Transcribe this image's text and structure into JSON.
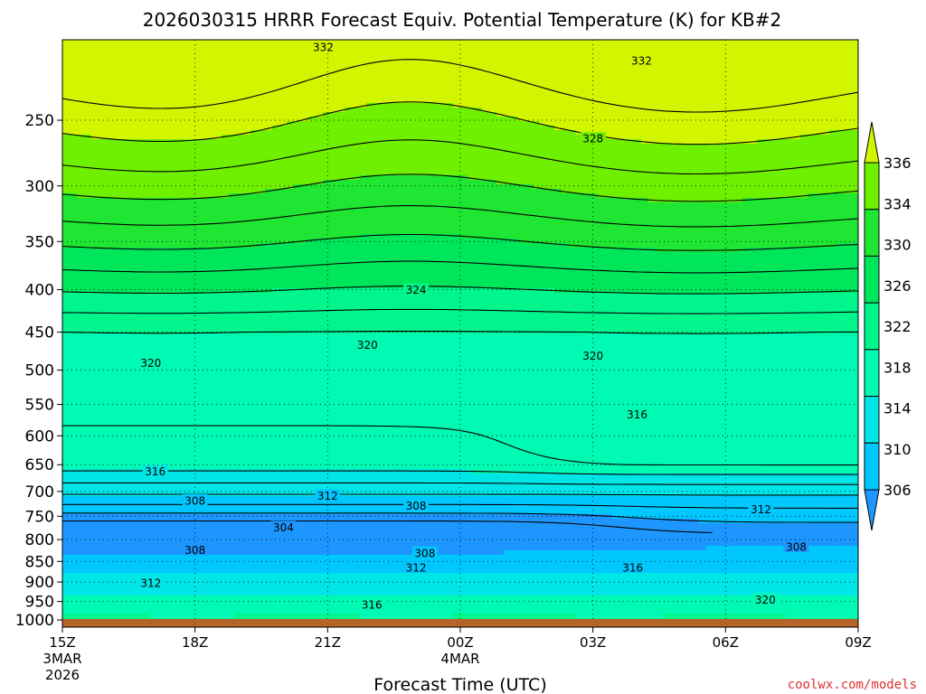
{
  "chart_data": {
    "type": "contour",
    "title": "2026030315 HRRR Forecast Equiv. Potential Temperature (K) for KB#2",
    "xlabel": "Forecast Time (UTC)",
    "ylabel": "",
    "x_ticks": [
      {
        "hour": 0,
        "label": "15Z",
        "sub1": "3MAR",
        "sub2": "2026"
      },
      {
        "hour": 3,
        "label": "18Z"
      },
      {
        "hour": 6,
        "label": "21Z"
      },
      {
        "hour": 9,
        "label": "00Z",
        "sub1": "4MAR"
      },
      {
        "hour": 12,
        "label": "03Z"
      },
      {
        "hour": 15,
        "label": "06Z"
      },
      {
        "hour": 18,
        "label": "09Z"
      }
    ],
    "y_ticks": [
      250,
      300,
      350,
      400,
      450,
      500,
      550,
      600,
      650,
      700,
      750,
      800,
      850,
      900,
      950,
      1000
    ],
    "y_range_hpa": [
      200,
      1020
    ],
    "y_scale": "log",
    "x_range_hours": [
      0,
      18
    ],
    "colorbar": {
      "levels": [
        306,
        310,
        314,
        318,
        322,
        326,
        330,
        334,
        336
      ],
      "bands": [
        {
          "lo": 302,
          "hi": 306,
          "color": "#1e96ff"
        },
        {
          "lo": 306,
          "hi": 310,
          "color": "#00c8ff"
        },
        {
          "lo": 310,
          "hi": 314,
          "color": "#00e6e6"
        },
        {
          "lo": 314,
          "hi": 318,
          "color": "#00fab4"
        },
        {
          "lo": 318,
          "hi": 322,
          "color": "#00f58c"
        },
        {
          "lo": 322,
          "hi": 326,
          "color": "#00e65a"
        },
        {
          "lo": 326,
          "hi": 330,
          "color": "#1ee632"
        },
        {
          "lo": 330,
          "hi": 334,
          "color": "#6ef000"
        },
        {
          "lo": 334,
          "hi": 338,
          "color": "#d2f500"
        }
      ]
    },
    "contour_labels": [
      {
        "text": "332",
        "hour": 5.9,
        "hpa": 204
      },
      {
        "text": "332",
        "hour": 13.1,
        "hpa": 212
      },
      {
        "text": "328",
        "hour": 12.0,
        "hpa": 263
      },
      {
        "text": "324",
        "hour": 8.0,
        "hpa": 400
      },
      {
        "text": "320",
        "hour": 2.0,
        "hpa": 490
      },
      {
        "text": "320",
        "hour": 6.9,
        "hpa": 466
      },
      {
        "text": "320",
        "hour": 12.0,
        "hpa": 480
      },
      {
        "text": "316",
        "hour": 13.0,
        "hpa": 565
      },
      {
        "text": "316",
        "hour": 2.1,
        "hpa": 662
      },
      {
        "text": "312",
        "hour": 6.0,
        "hpa": 708
      },
      {
        "text": "308",
        "hour": 3.0,
        "hpa": 718
      },
      {
        "text": "308",
        "hour": 8.0,
        "hpa": 728
      },
      {
        "text": "312",
        "hour": 15.8,
        "hpa": 735
      },
      {
        "text": "304",
        "hour": 5.0,
        "hpa": 773
      },
      {
        "text": "308",
        "hour": 3.0,
        "hpa": 823
      },
      {
        "text": "308",
        "hour": 8.2,
        "hpa": 830
      },
      {
        "text": "308",
        "hour": 16.6,
        "hpa": 816
      },
      {
        "text": "312",
        "hour": 8.0,
        "hpa": 865
      },
      {
        "text": "316",
        "hour": 12.9,
        "hpa": 865
      },
      {
        "text": "312",
        "hour": 2.0,
        "hpa": 902
      },
      {
        "text": "316",
        "hour": 7.0,
        "hpa": 958
      },
      {
        "text": "320",
        "hour": 15.9,
        "hpa": 945
      }
    ],
    "ground_color": "#b46428",
    "grid": "dotted",
    "credit": "coolwx.com/models"
  }
}
